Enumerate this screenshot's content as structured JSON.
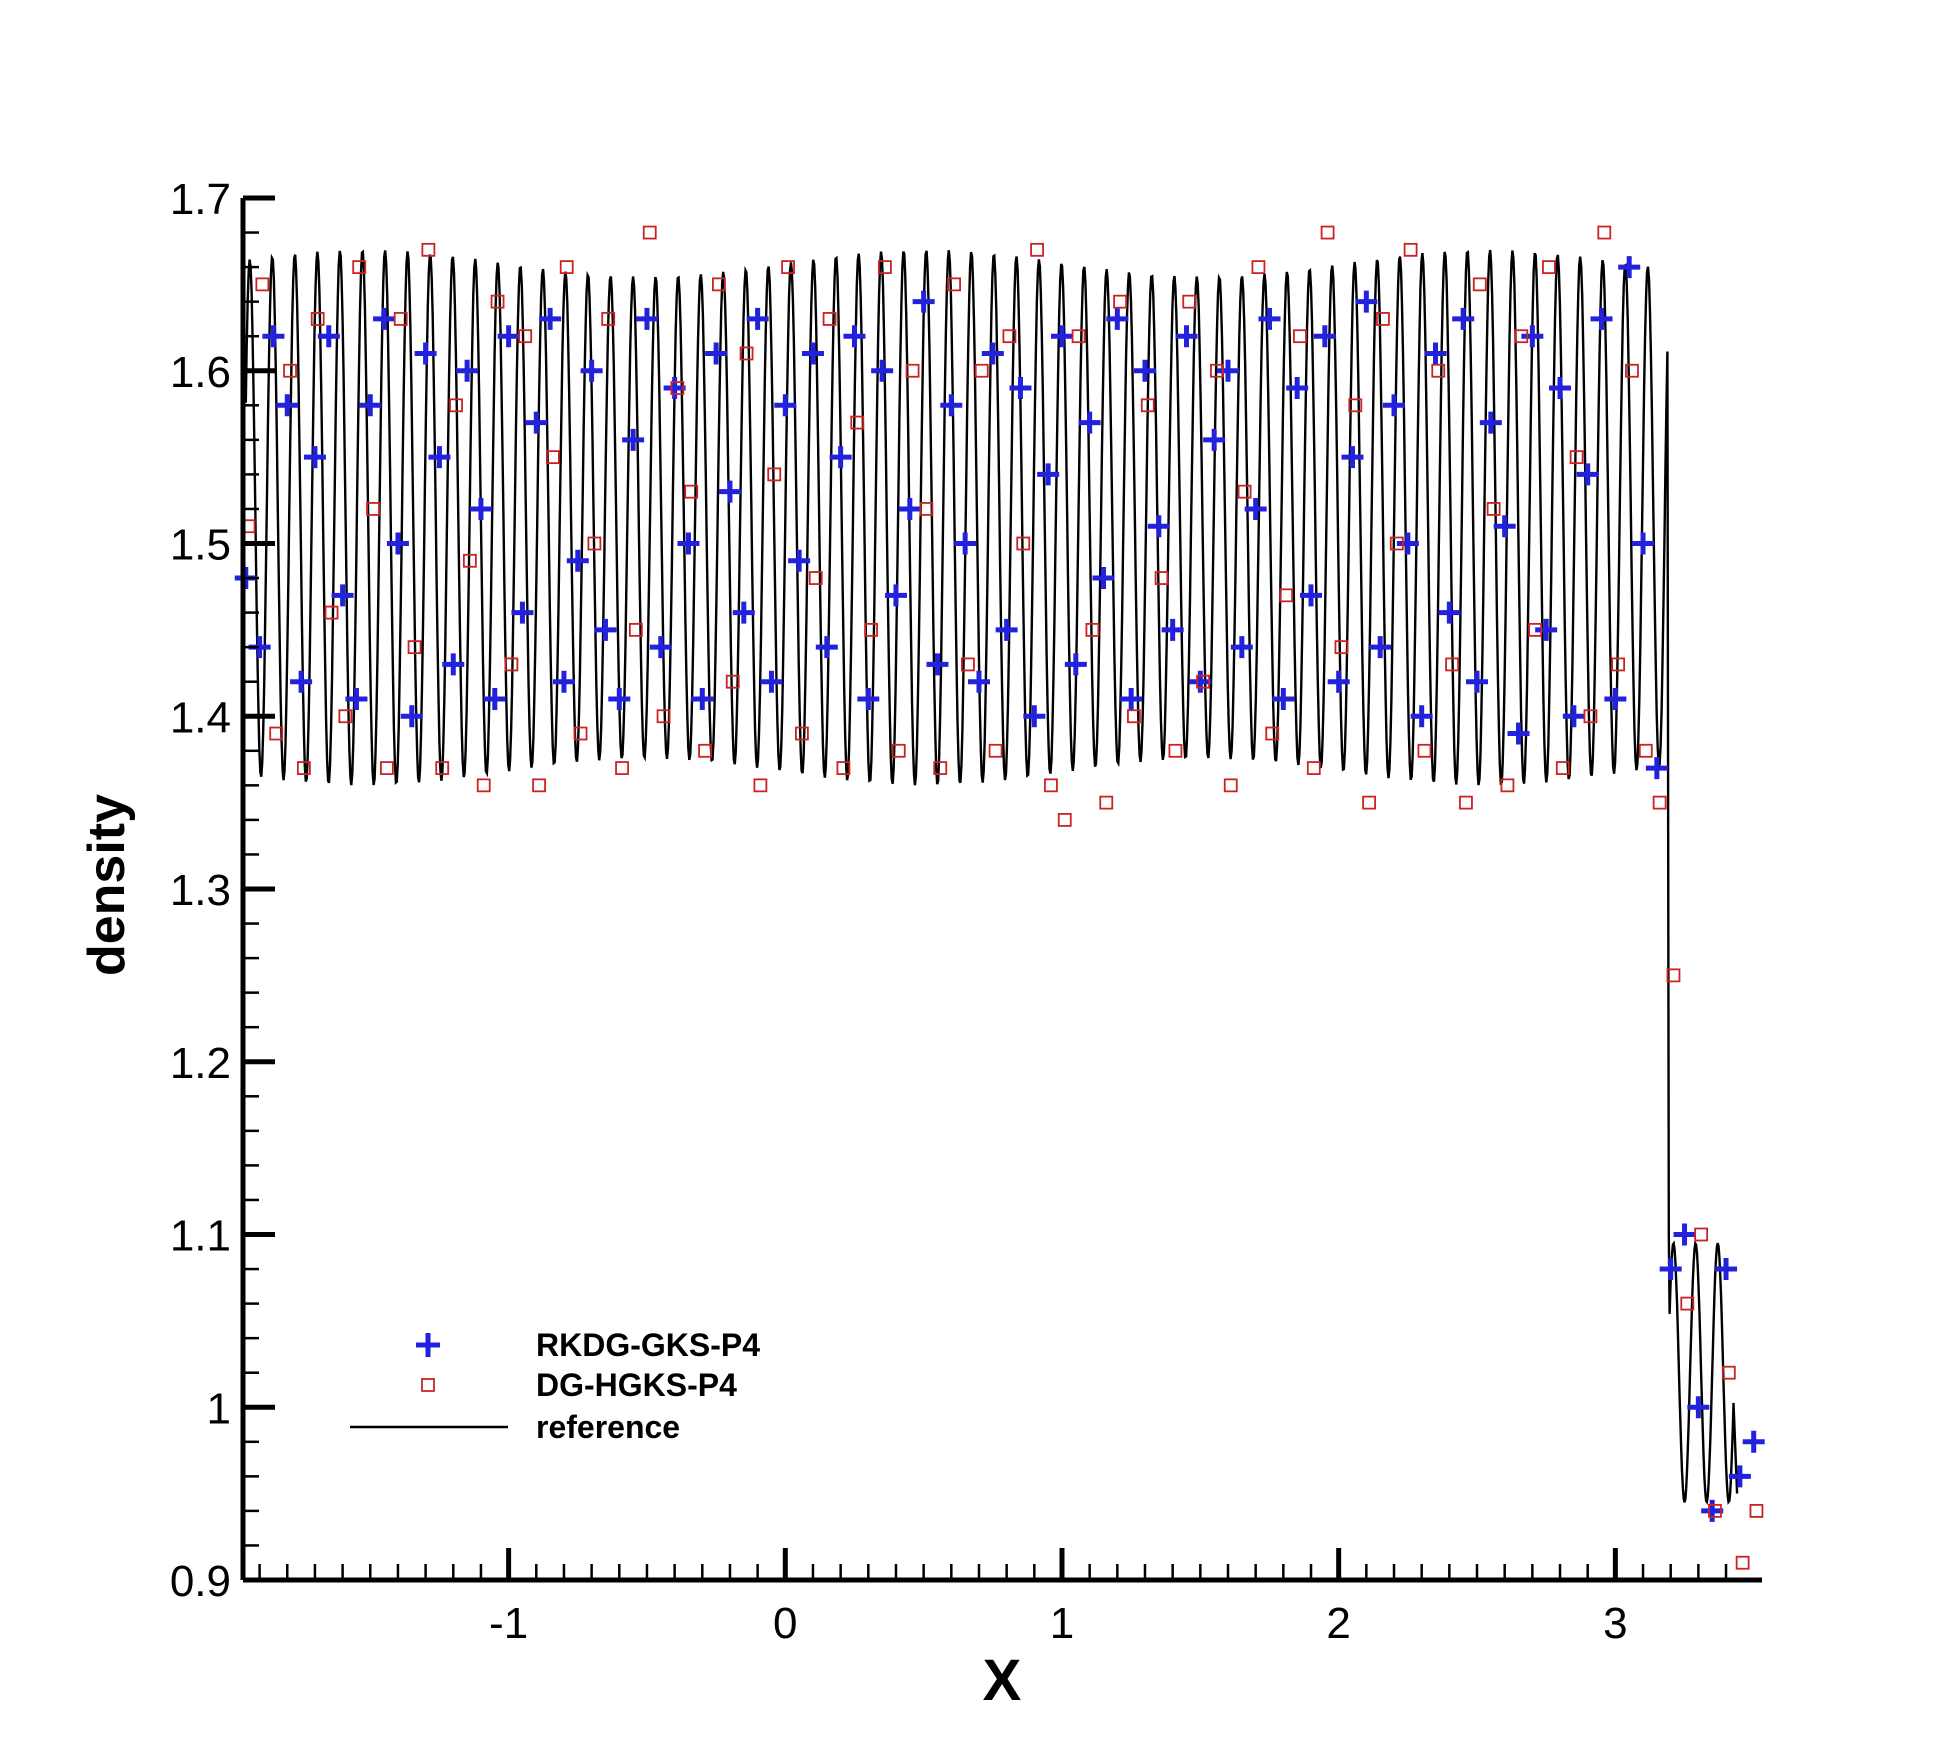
{
  "chart_data": {
    "type": "scatter",
    "title": "",
    "xlabel": "X",
    "ylabel": "density",
    "xlim": [
      -1.96,
      3.53
    ],
    "ylim": [
      0.9,
      1.7
    ],
    "x_ticks": [
      -1,
      0,
      1,
      2,
      3
    ],
    "y_ticks": [
      0.9,
      1.0,
      1.1,
      1.2,
      1.3,
      1.4,
      1.5,
      1.6,
      1.7
    ],
    "x_tick_labels": [
      "-1",
      "0",
      "1",
      "2",
      "3"
    ],
    "y_tick_labels": [
      "0.9",
      "1",
      "1.1",
      "1.2",
      "1.3",
      "1.4",
      "1.5",
      "1.6",
      "1.7"
    ],
    "legend_position": "bottom-left",
    "series": [
      {
        "name": "RKDG-GKS-P4",
        "marker": "plus",
        "color": "#2222dd",
        "x": [
          -1.95,
          -1.9,
          -1.85,
          -1.8,
          -1.75,
          -1.7,
          -1.65,
          -1.6,
          -1.55,
          -1.5,
          -1.45,
          -1.4,
          -1.35,
          -1.3,
          -1.25,
          -1.2,
          -1.15,
          -1.1,
          -1.05,
          -1.0,
          -0.95,
          -0.9,
          -0.85,
          -0.8,
          -0.75,
          -0.7,
          -0.65,
          -0.6,
          -0.55,
          -0.5,
          -0.45,
          -0.4,
          -0.35,
          -0.3,
          -0.25,
          -0.2,
          -0.15,
          -0.1,
          -0.05,
          0.0,
          0.05,
          0.1,
          0.15,
          0.2,
          0.25,
          0.3,
          0.35,
          0.4,
          0.45,
          0.5,
          0.55,
          0.6,
          0.65,
          0.7,
          0.75,
          0.8,
          0.85,
          0.9,
          0.95,
          1.0,
          1.05,
          1.1,
          1.15,
          1.2,
          1.25,
          1.3,
          1.35,
          1.4,
          1.45,
          1.5,
          1.55,
          1.6,
          1.65,
          1.7,
          1.75,
          1.8,
          1.85,
          1.9,
          1.95,
          2.0,
          2.05,
          2.1,
          2.15,
          2.2,
          2.25,
          2.3,
          2.35,
          2.4,
          2.45,
          2.5,
          2.55,
          2.6,
          2.65,
          2.7,
          2.75,
          2.8,
          2.85,
          2.9,
          2.95,
          3.0,
          3.05,
          3.1,
          3.15,
          3.2,
          3.25,
          3.3,
          3.35,
          3.4,
          3.45,
          3.5
        ],
        "y": [
          1.48,
          1.44,
          1.62,
          1.58,
          1.42,
          1.55,
          1.62,
          1.47,
          1.41,
          1.58,
          1.63,
          1.5,
          1.4,
          1.61,
          1.55,
          1.43,
          1.6,
          1.52,
          1.41,
          1.62,
          1.46,
          1.57,
          1.63,
          1.42,
          1.49,
          1.6,
          1.45,
          1.41,
          1.56,
          1.63,
          1.44,
          1.59,
          1.5,
          1.41,
          1.61,
          1.53,
          1.46,
          1.63,
          1.42,
          1.58,
          1.49,
          1.61,
          1.44,
          1.55,
          1.62,
          1.41,
          1.6,
          1.47,
          1.52,
          1.64,
          1.43,
          1.58,
          1.5,
          1.42,
          1.61,
          1.45,
          1.59,
          1.4,
          1.54,
          1.62,
          1.43,
          1.57,
          1.48,
          1.63,
          1.41,
          1.6,
          1.51,
          1.45,
          1.62,
          1.42,
          1.56,
          1.6,
          1.44,
          1.52,
          1.63,
          1.41,
          1.59,
          1.47,
          1.62,
          1.42,
          1.55,
          1.64,
          1.44,
          1.58,
          1.5,
          1.4,
          1.61,
          1.46,
          1.63,
          1.42,
          1.57,
          1.51,
          1.39,
          1.62,
          1.45,
          1.59,
          1.4,
          1.54,
          1.63,
          1.41,
          1.66,
          1.5,
          1.37,
          1.08,
          1.1,
          1.0,
          0.94,
          1.08,
          0.96,
          0.98
        ]
      },
      {
        "name": "DG-HGKS-P4",
        "marker": "square",
        "color": "#cc2222",
        "x": [
          -1.94,
          -1.89,
          -1.84,
          -1.79,
          -1.74,
          -1.69,
          -1.64,
          -1.59,
          -1.54,
          -1.49,
          -1.44,
          -1.39,
          -1.34,
          -1.29,
          -1.24,
          -1.19,
          -1.14,
          -1.09,
          -1.04,
          -0.99,
          -0.94,
          -0.89,
          -0.84,
          -0.79,
          -0.74,
          -0.69,
          -0.64,
          -0.59,
          -0.54,
          -0.49,
          -0.44,
          -0.39,
          -0.34,
          -0.29,
          -0.24,
          -0.19,
          -0.14,
          -0.09,
          -0.04,
          0.01,
          0.06,
          0.11,
          0.16,
          0.21,
          0.26,
          0.31,
          0.36,
          0.41,
          0.46,
          0.51,
          0.56,
          0.61,
          0.66,
          0.71,
          0.76,
          0.81,
          0.86,
          0.91,
          0.96,
          1.01,
          1.06,
          1.11,
          1.16,
          1.21,
          1.26,
          1.31,
          1.36,
          1.41,
          1.46,
          1.51,
          1.56,
          1.61,
          1.66,
          1.71,
          1.76,
          1.81,
          1.86,
          1.91,
          1.96,
          2.01,
          2.06,
          2.11,
          2.16,
          2.21,
          2.26,
          2.31,
          2.36,
          2.41,
          2.46,
          2.51,
          2.56,
          2.61,
          2.66,
          2.71,
          2.76,
          2.81,
          2.86,
          2.91,
          2.96,
          3.01,
          3.06,
          3.11,
          3.16,
          3.21,
          3.26,
          3.31,
          3.36,
          3.41,
          3.46,
          3.51
        ],
        "y": [
          1.51,
          1.65,
          1.39,
          1.6,
          1.37,
          1.63,
          1.46,
          1.4,
          1.66,
          1.52,
          1.37,
          1.63,
          1.44,
          1.67,
          1.37,
          1.58,
          1.49,
          1.36,
          1.64,
          1.43,
          1.62,
          1.36,
          1.55,
          1.66,
          1.39,
          1.5,
          1.63,
          1.37,
          1.45,
          1.68,
          1.4,
          1.59,
          1.53,
          1.38,
          1.65,
          1.42,
          1.61,
          1.36,
          1.54,
          1.66,
          1.39,
          1.48,
          1.63,
          1.37,
          1.57,
          1.45,
          1.66,
          1.38,
          1.6,
          1.52,
          1.37,
          1.65,
          1.43,
          1.6,
          1.38,
          1.62,
          1.5,
          1.67,
          1.36,
          1.34,
          1.62,
          1.45,
          1.35,
          1.64,
          1.4,
          1.58,
          1.48,
          1.38,
          1.64,
          1.42,
          1.6,
          1.36,
          1.53,
          1.66,
          1.39,
          1.47,
          1.62,
          1.37,
          1.68,
          1.44,
          1.58,
          1.35,
          1.63,
          1.5,
          1.67,
          1.38,
          1.6,
          1.43,
          1.35,
          1.65,
          1.52,
          1.36,
          1.62,
          1.45,
          1.66,
          1.37,
          1.55,
          1.4,
          1.68,
          1.43,
          1.6,
          1.38,
          1.35,
          1.25,
          1.06,
          1.1,
          0.94,
          1.02,
          0.91,
          0.94
        ]
      }
    ],
    "reference": {
      "name": "reference",
      "line": "solid",
      "color": "#000000"
    }
  }
}
